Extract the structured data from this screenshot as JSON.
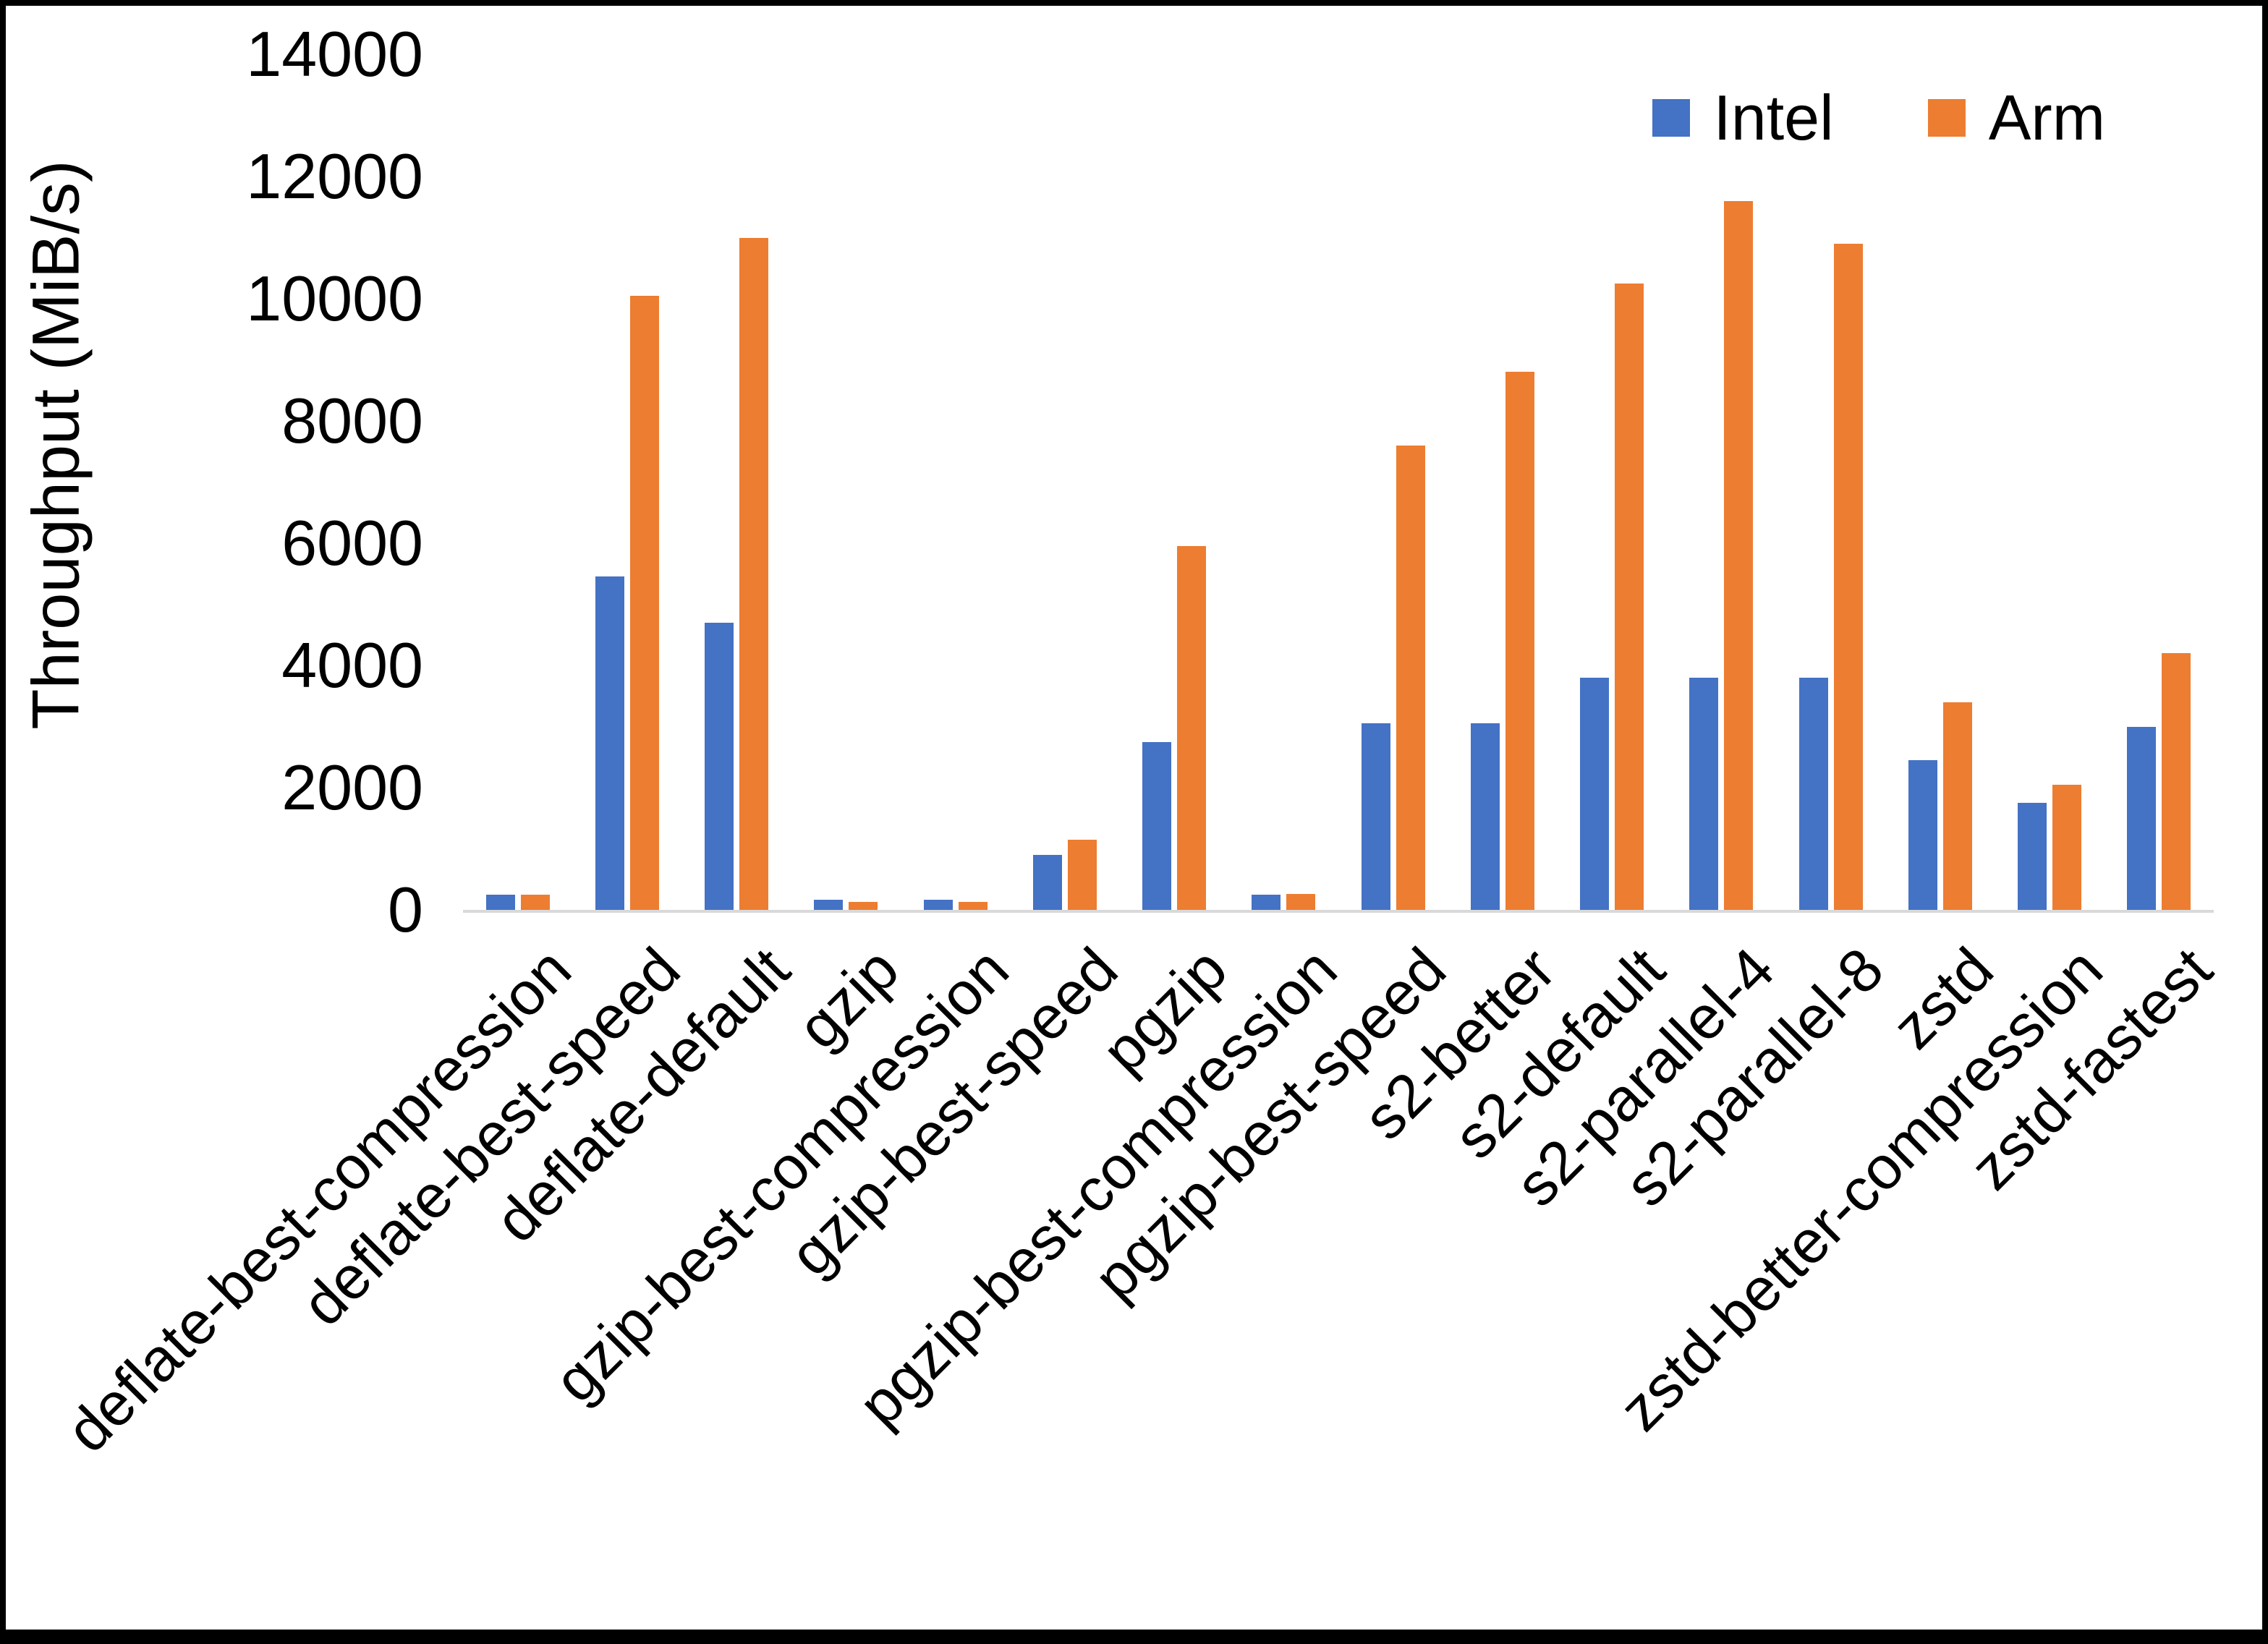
{
  "chart_data": {
    "type": "bar",
    "title": "",
    "xlabel": "",
    "ylabel": "Throughput (MiB/s)",
    "ylim": [
      0,
      14000
    ],
    "yticks": [
      0,
      2000,
      4000,
      6000,
      8000,
      10000,
      12000,
      14000
    ],
    "grid": false,
    "legend_position": "top-right",
    "categories": [
      "deflate-best-compression",
      "deflate-best-speed",
      "deflate-default",
      "gzip",
      "gzip-best-compression",
      "gzip-best-speed",
      "pgzip",
      "pgzip-best-compression",
      "pgzip-best-speed",
      "s2-better",
      "s2-default",
      "s2-parallel-4",
      "s2-parallel-8",
      "zstd",
      "zstd-better-compression",
      "zstd-fastest"
    ],
    "series": [
      {
        "name": "Intel",
        "color": "#4472C4",
        "values": [
          250,
          5450,
          4700,
          160,
          160,
          900,
          2750,
          250,
          3050,
          3050,
          3800,
          3800,
          3800,
          2450,
          1750,
          3000
        ]
      },
      {
        "name": "Arm",
        "color": "#ED7D31",
        "values": [
          250,
          10050,
          11000,
          130,
          130,
          1150,
          5950,
          260,
          7600,
          8800,
          10250,
          11600,
          10900,
          3400,
          2050,
          4200
        ]
      }
    ]
  },
  "frame": {
    "border_color": "#000000",
    "background": "#ffffff",
    "axis_line_color": "#d9d9d9"
  }
}
